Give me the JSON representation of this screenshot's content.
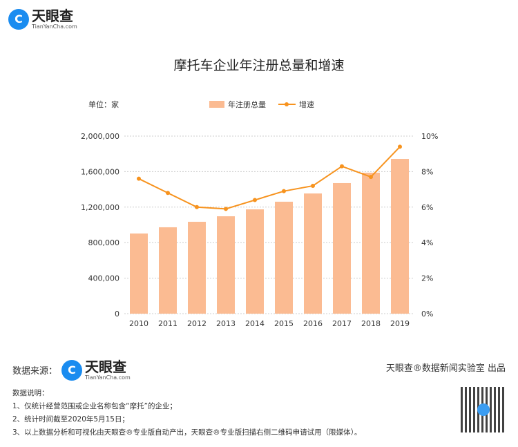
{
  "brand": {
    "name": "天眼查",
    "domain": "TianYanCha.com",
    "accent": "#1a8cf0"
  },
  "chart_data": {
    "type": "bar",
    "title": "摩托车企业年注册总量和增速",
    "unit_label": "单位：家",
    "categories": [
      "2010",
      "2011",
      "2012",
      "2013",
      "2014",
      "2015",
      "2016",
      "2017",
      "2018",
      "2019"
    ],
    "series": [
      {
        "name": "年注册总量",
        "type": "bar",
        "axis": "left",
        "color": "#fbbb92",
        "values": [
          903000,
          973000,
          1035000,
          1097000,
          1175000,
          1261000,
          1354000,
          1471000,
          1588000,
          1743000
        ]
      },
      {
        "name": "增速",
        "type": "line",
        "axis": "right",
        "color": "#f7931e",
        "values": [
          7.6,
          6.8,
          6.0,
          5.9,
          6.4,
          6.9,
          7.2,
          8.3,
          7.7,
          9.4
        ]
      }
    ],
    "left_axis": {
      "ylim": [
        0,
        2000000
      ],
      "ticks": [
        "0",
        "400,000",
        "800,000",
        "1,200,000",
        "1,600,000",
        "2,000,000"
      ]
    },
    "right_axis": {
      "ylim": [
        0,
        10
      ],
      "ticks": [
        "0%",
        "2%",
        "4%",
        "6%",
        "8%",
        "10%"
      ]
    },
    "grid": true,
    "legend": "top-center"
  },
  "footer": {
    "source_label": "数据来源：",
    "credit": "天眼查®数据新闻实验室 出品",
    "notes_title": "数据说明：",
    "notes": [
      "1、仅统计经营范围或企业名称包含“摩托”的企业；",
      "2、统计时间截至2020年5月15日；",
      "3、以上数据分析和可视化由天眼查®专业版自动产出，天眼查®专业版扫描右侧二维码申请试用（限媒体）。"
    ]
  }
}
